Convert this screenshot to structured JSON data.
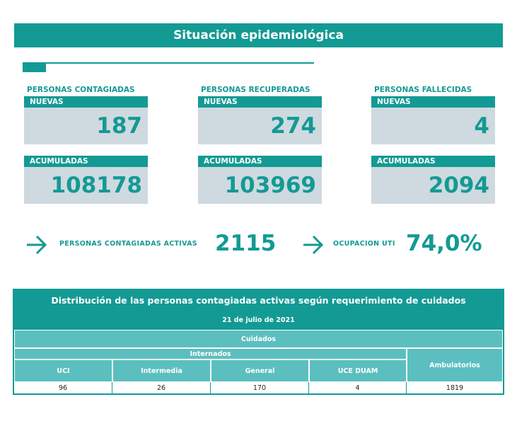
{
  "header": {
    "title": "Situación epidemiológica"
  },
  "stats": {
    "contagiadas": {
      "title": "PERSONAS CONTAGIADAS",
      "nuevas_label": "NUEVAS",
      "nuevas_value": "187",
      "acumuladas_label": "ACUMULADAS",
      "acumuladas_value": "108178"
    },
    "recuperadas": {
      "title": "PERSONAS RECUPERADAS",
      "nuevas_label": "NUEVAS",
      "nuevas_value": "274",
      "acumuladas_label": "ACUMULADAS",
      "acumuladas_value": "103969"
    },
    "fallecidas": {
      "title": "PERSONAS FALLECIDAS",
      "nuevas_label": "NUEVAS",
      "nuevas_value": "4",
      "acumuladas_label": "ACUMULADAS",
      "acumuladas_value": "2094"
    }
  },
  "summary": {
    "activas_label": "PERSONAS CONTAGIADAS ACTIVAS",
    "activas_value": "2115",
    "uti_label": "OCUPACION UTI",
    "uti_value": "74,0%"
  },
  "table": {
    "title": "Distribución de las personas contagiadas activas según requerimiento de cuidados",
    "date": "21 de julio de 2021",
    "group_header": "Cuidados",
    "subgroup_header": "Internados",
    "columns": [
      "UCI",
      "Intermedia",
      "General",
      "UCE DUAM",
      "Ambulatorios"
    ],
    "values": [
      "96",
      "26",
      "170",
      "4",
      "1819"
    ]
  },
  "colors": {
    "teal": "#139a94",
    "light_teal": "#5bbfbf",
    "box_bg": "#cfd9e0"
  },
  "icons": {
    "arrow": "arrow-right-icon"
  }
}
